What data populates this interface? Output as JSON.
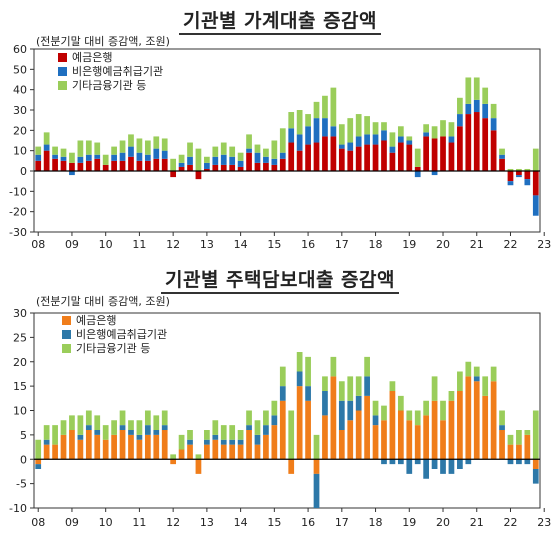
{
  "chart_data": [
    {
      "type": "bar",
      "stacked": true,
      "title": "기관별 가계대출 증감액",
      "ylabel": "(전분기말 대비 증감액, 조원)",
      "ylim": [
        -30,
        60
      ],
      "yticks": [
        -30,
        -20,
        -10,
        0,
        10,
        20,
        30,
        40,
        50,
        60
      ],
      "xtick_labels": [
        "08",
        "09",
        "10",
        "11",
        "12",
        "13",
        "14",
        "15",
        "16",
        "17",
        "18",
        "19",
        "20",
        "21",
        "22",
        "23"
      ],
      "legend_position": "top-left",
      "series": [
        {
          "name": "예금은행",
          "color": "#c00000",
          "values": [
            5,
            10,
            6,
            5,
            4,
            4,
            5,
            6,
            3,
            5,
            5,
            7,
            5,
            5,
            6,
            6,
            -3,
            2,
            3,
            -4,
            1,
            3,
            3,
            3,
            2,
            9,
            4,
            4,
            3,
            6,
            14,
            10,
            13,
            14,
            17,
            17,
            11,
            10,
            12,
            13,
            13,
            15,
            9,
            14,
            13,
            2,
            17,
            16,
            17,
            14,
            22,
            28,
            29,
            26,
            20,
            6,
            -5,
            -2,
            -4,
            -12
          ]
        },
        {
          "name": "비은행예금취급기관",
          "color": "#1f6fc0",
          "values": [
            3,
            3,
            2,
            2,
            -2,
            3,
            3,
            2,
            0,
            3,
            4,
            5,
            4,
            3,
            5,
            4,
            0,
            2,
            4,
            0,
            3,
            4,
            5,
            4,
            3,
            2,
            5,
            3,
            3,
            3,
            7,
            8,
            9,
            12,
            9,
            5,
            2,
            4,
            5,
            5,
            5,
            5,
            3,
            3,
            2,
            -3,
            2,
            -2,
            0,
            3,
            6,
            5,
            6,
            7,
            6,
            2,
            -2,
            -1,
            -3,
            -10
          ]
        },
        {
          "name": "기타금융기관 등",
          "color": "#9acd5a",
          "values": [
            4,
            6,
            4,
            4,
            5,
            8,
            7,
            6,
            5,
            4,
            6,
            6,
            7,
            7,
            6,
            6,
            6,
            4,
            7,
            11,
            3,
            5,
            6,
            5,
            4,
            7,
            4,
            4,
            9,
            12,
            8,
            12,
            6,
            8,
            11,
            19,
            10,
            12,
            11,
            9,
            6,
            4,
            7,
            5,
            2,
            9,
            4,
            6,
            8,
            7,
            8,
            13,
            11,
            8,
            7,
            3,
            1,
            1,
            1,
            11
          ]
        }
      ]
    },
    {
      "type": "bar",
      "stacked": true,
      "title": "기관별 주택담보대출 증감액",
      "ylabel": "(전분기말 대비 증감액, 조원)",
      "ylim": [
        -10,
        30
      ],
      "yticks": [
        -10,
        -5,
        0,
        5,
        10,
        15,
        20,
        25,
        30
      ],
      "xtick_labels": [
        "08",
        "09",
        "10",
        "11",
        "12",
        "13",
        "14",
        "15",
        "16",
        "17",
        "18",
        "19",
        "20",
        "21",
        "22",
        "23"
      ],
      "legend_position": "top-left",
      "series": [
        {
          "name": "예금은행",
          "color": "#f07d1a",
          "values": [
            -1,
            3,
            3,
            5,
            6,
            4,
            6,
            5,
            4,
            5,
            6,
            5,
            4,
            5,
            5,
            6,
            -1,
            2,
            3,
            -3,
            3,
            4,
            3,
            3,
            3,
            6,
            3,
            5,
            7,
            12,
            -3,
            15,
            12,
            -3,
            9,
            17,
            6,
            8,
            10,
            13,
            7,
            8,
            14,
            10,
            8,
            7,
            9,
            12,
            8,
            12,
            14,
            17,
            16,
            13,
            16,
            6,
            3,
            3,
            5,
            -2
          ]
        },
        {
          "name": "비은행예금취급기관",
          "color": "#2d78a8",
          "values": [
            -1,
            1,
            0,
            0,
            0,
            1,
            1,
            1,
            0,
            0,
            1,
            1,
            1,
            2,
            1,
            1,
            0,
            0,
            1,
            0,
            1,
            1,
            1,
            1,
            1,
            1,
            2,
            2,
            2,
            3,
            0,
            3,
            3,
            -7,
            5,
            0,
            6,
            4,
            3,
            4,
            2,
            -1,
            -1,
            -1,
            -3,
            -1,
            -4,
            -2,
            -3,
            -3,
            -2,
            -1,
            1,
            0,
            0,
            1,
            -1,
            -1,
            -1,
            -3
          ]
        },
        {
          "name": "기타금융기관 등",
          "color": "#9acd5a",
          "values": [
            4,
            3,
            4,
            3,
            3,
            4,
            3,
            3,
            3,
            3,
            3,
            2,
            3,
            3,
            3,
            3,
            1,
            3,
            2,
            1,
            2,
            3,
            3,
            3,
            2,
            3,
            3,
            3,
            3,
            4,
            10,
            4,
            6,
            5,
            3,
            4,
            4,
            5,
            4,
            4,
            3,
            3,
            2,
            3,
            2,
            3,
            3,
            5,
            4,
            2,
            4,
            3,
            2,
            4,
            3,
            3,
            2,
            3,
            1,
            10
          ]
        }
      ]
    }
  ]
}
